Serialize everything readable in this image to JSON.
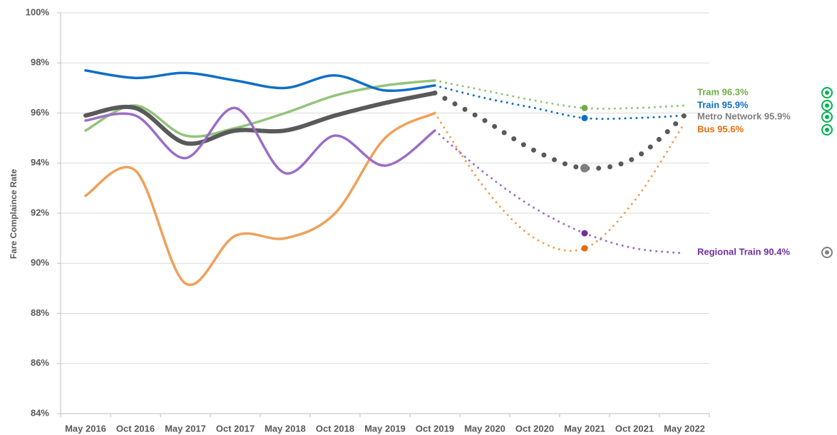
{
  "chart_data": {
    "type": "line",
    "y_label": "Fare Complaince Rate",
    "categories": [
      "May 2016",
      "Oct 2016",
      "May 2017",
      "Oct 2017",
      "May 2018",
      "Oct 2018",
      "May 2019",
      "Oct 2019",
      "May 2020",
      "Oct 2020",
      "May 2021",
      "Oct 2021",
      "May 2022"
    ],
    "dotted_from": "Oct 2019",
    "highlight": "May 2021",
    "ylim": [
      84,
      100
    ],
    "yticks": [
      {
        "value": 84,
        "label": "84%"
      },
      {
        "value": 86,
        "label": "86%"
      },
      {
        "value": 88,
        "label": "88%"
      },
      {
        "value": 90,
        "label": "90%"
      },
      {
        "value": 92,
        "label": "92%"
      },
      {
        "value": 94,
        "label": "94%"
      },
      {
        "value": 96,
        "label": "96%"
      },
      {
        "value": 98,
        "label": "98%"
      },
      {
        "value": 100,
        "label": "100%"
      }
    ],
    "grid": true,
    "series": [
      {
        "name": "Tram",
        "color": "#92c47b",
        "label_color": "#70ad47",
        "status_color": "#00b050",
        "end_label": "Tram 96.3%",
        "values": [
          95.3,
          96.3,
          95.1,
          95.4,
          96.0,
          96.7,
          97.1,
          97.3,
          96.9,
          96.5,
          96.2,
          96.2,
          96.3
        ]
      },
      {
        "name": "Train",
        "color": "#0f6fc6",
        "label_color": "#0f6fc6",
        "status_color": "#00b050",
        "end_label": "Train 95.9%",
        "values": [
          97.7,
          97.4,
          97.6,
          97.3,
          97.0,
          97.5,
          96.9,
          97.1,
          96.6,
          96.2,
          95.8,
          95.8,
          95.9
        ]
      },
      {
        "name": "Metro Network",
        "color": "#595959",
        "label_color": "#7f7f7f",
        "status_color": "#00b050",
        "end_label": "Metro Network 95.9%",
        "values": [
          95.9,
          96.2,
          94.8,
          95.3,
          95.3,
          95.9,
          96.4,
          96.8,
          95.7,
          94.5,
          93.8,
          94.2,
          95.9
        ]
      },
      {
        "name": "Bus",
        "color": "#f0a05a",
        "label_color": "#e36c09",
        "status_color": "#00b050",
        "end_label": "Bus 95.6%",
        "values": [
          92.7,
          93.7,
          89.2,
          91.1,
          91.0,
          92.0,
          95.0,
          96.0,
          93.0,
          91.0,
          90.6,
          92.5,
          95.6
        ]
      },
      {
        "name": "Regional Train",
        "color": "#9b6dc6",
        "label_color": "#7030a0",
        "status_color": "#7f7f7f",
        "end_label": "Regional Train 90.4%",
        "values": [
          95.7,
          95.9,
          94.2,
          96.2,
          93.6,
          95.1,
          93.9,
          95.3,
          93.6,
          92.2,
          91.2,
          90.6,
          90.4
        ]
      }
    ]
  }
}
